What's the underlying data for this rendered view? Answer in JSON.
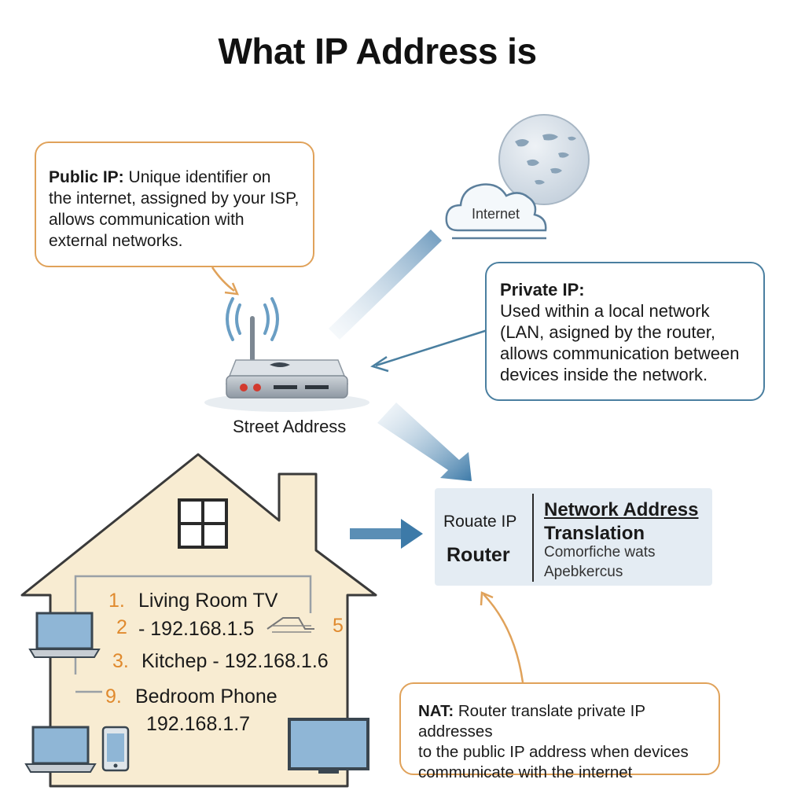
{
  "title": "What IP Address is",
  "public_ip": {
    "term": "Public IP:",
    "lines": [
      "Unique identifier on",
      "the internet, assigned by your ISP,",
      "allows communication with",
      "external networks."
    ]
  },
  "internet": {
    "label": "Internet"
  },
  "private_ip": {
    "term": "Private IP:",
    "lines": [
      "Used within a local network",
      "(LAN, asigned by the router,",
      "allows communication between",
      "devices inside the network."
    ]
  },
  "router": {
    "label": "Street Address"
  },
  "router_panel": {
    "left_line1": "Rouate IP",
    "left_line2": "Router",
    "title_line1": "Network Address",
    "title_line2": "Translation",
    "sub_line1": "Comorfiche wats",
    "sub_line2": "Apebkercus"
  },
  "devices": [
    {
      "num": "1.",
      "text": "Living Room TV"
    },
    {
      "num": "2",
      "text": "- 192.168.1.5"
    },
    {
      "num": "5",
      "text": ""
    },
    {
      "num": "3.",
      "text": "Kitchep - 192.168.1.6"
    },
    {
      "num": "9.",
      "text": "Bedroom Phone"
    },
    {
      "num": "",
      "text": "192.168.1.7"
    }
  ],
  "nat": {
    "term": "NAT:",
    "lines": [
      "Router translate private IP addresses",
      "to the public IP address when devices",
      "communicate with the internet"
    ]
  },
  "colors": {
    "orange": "#e0a25a",
    "blue_border": "#4a7fa0",
    "house_fill": "#f8ecd2",
    "house_stroke": "#3a3a3a",
    "arrow_blue": "#3d7aa8",
    "number_orange": "#e08a2e"
  }
}
